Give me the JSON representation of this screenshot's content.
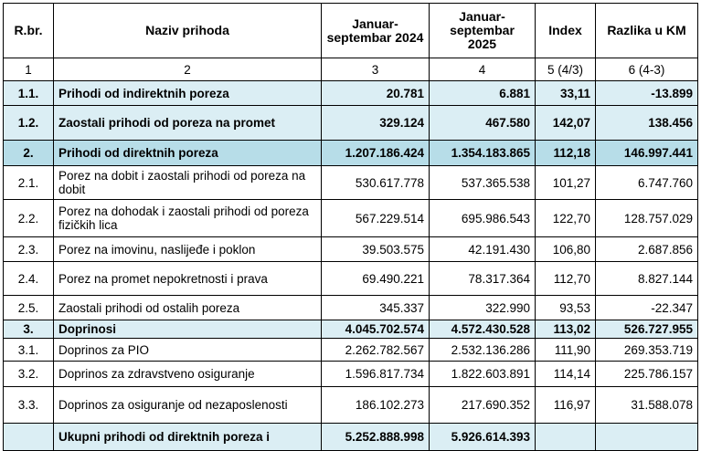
{
  "table": {
    "header": [
      "R.br.",
      "Naziv prihoda",
      "Januar-septembar 2024",
      "Januar-septembar 2025",
      "Index",
      "Razlika u KM"
    ],
    "column_numbers": [
      "1",
      "2",
      "3",
      "4",
      "5 (4/3)",
      "6 (4-3)"
    ],
    "rows": [
      [
        "1.1.",
        "Prihodi od indirektnih poreza",
        "20.781",
        "6.881",
        "33,11",
        "-13.899"
      ],
      [
        "1.2.",
        "Zaostali prihodi od poreza na promet",
        "329.124",
        "467.580",
        "142,07",
        "138.456"
      ],
      [
        "2.",
        "Prihodi od direktnih poreza",
        "1.207.186.424",
        "1.354.183.865",
        "112,18",
        "146.997.441"
      ],
      [
        "2.1.",
        "Porez na dobit i zaostali prihodi od poreza na dobit",
        "530.617.778",
        "537.365.538",
        "101,27",
        "6.747.760"
      ],
      [
        "2.2.",
        "Porez na dohodak i zaostali prihodi od poreza fizičkih lica",
        "567.229.514",
        "695.986.543",
        "122,70",
        "128.757.029"
      ],
      [
        "2.3.",
        "Porez na imovinu, naslijeđe i poklon",
        "39.503.575",
        "42.191.430",
        "106,80",
        "2.687.856"
      ],
      [
        "2.4.",
        "Porez na promet nepokretnosti i prava",
        "69.490.221",
        "78.317.364",
        "112,70",
        "8.827.144"
      ],
      [
        "2.5.",
        "Zaostali prihodi od ostalih poreza",
        "345.337",
        "322.990",
        "93,53",
        "-22.347"
      ],
      [
        "3.",
        "Doprinosi",
        "4.045.702.574",
        "4.572.430.528",
        "113,02",
        "526.727.955"
      ],
      [
        "3.1.",
        "Doprinos za PIO",
        "2.262.782.567",
        "2.532.136.286",
        "111,90",
        "269.353.719"
      ],
      [
        "3.2.",
        "Doprinos za zdravstveno osiguranje",
        "1.596.817.734",
        "1.822.603.891",
        "114,14",
        "225.786.157"
      ],
      [
        "3.3.",
        "Doprinos za osiguranje od nezaposlenosti",
        "186.102.273",
        "217.690.352",
        "116,97",
        "31.588.078"
      ],
      [
        "",
        "Ukupni prihodi od direktnih poreza i",
        "5.252.888.998",
        "5.926.614.393",
        "",
        ""
      ]
    ]
  }
}
